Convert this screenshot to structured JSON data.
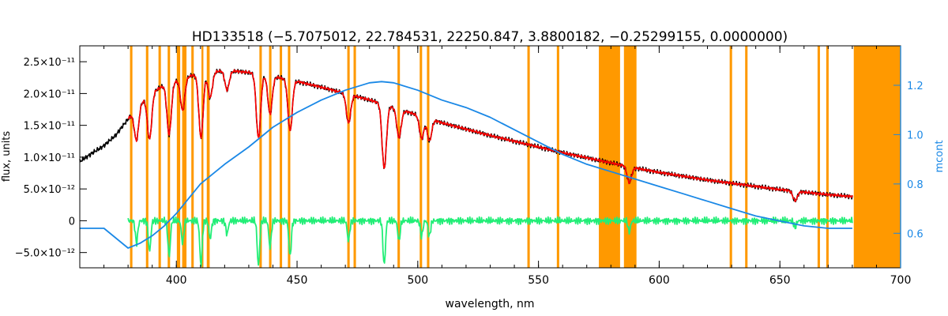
{
  "chart_data": {
    "type": "line",
    "title": "HD133518   (−5.7075012, 22.784531, 22250.847, 3.8800182, −0.25299155, 0.0000000)",
    "xlabel": "wavelength, nm",
    "ylabel": "flux, units",
    "ylabel_right": "mcont",
    "xlim": [
      360,
      700
    ],
    "ylim": [
      -7.4e-12,
      2.75e-11
    ],
    "ylim_right": [
      0.46,
      1.36
    ],
    "x_ticks": [
      400,
      450,
      500,
      550,
      600,
      650,
      700
    ],
    "x_tick_labels": [
      "400",
      "450",
      "500",
      "550",
      "600",
      "650",
      "700"
    ],
    "y_ticks": [
      -5e-12,
      0,
      5e-12,
      1e-11,
      1.5e-11,
      2e-11,
      2.5e-11
    ],
    "y_tick_labels": [
      "−5.0×10⁻¹²",
      "0",
      "5.0×10⁻¹²",
      "1.0×10⁻¹¹",
      "1.5×10⁻¹¹",
      "2.0×10⁻¹¹",
      "2.5×10⁻¹¹"
    ],
    "y_right_ticks": [
      0.6,
      0.8,
      1.0,
      1.2
    ],
    "y_right_tick_labels": [
      "0.6",
      "0.8",
      "1.0",
      "1.2"
    ],
    "masked_regions": [
      [
        380.8,
        381.8
      ],
      [
        387.4,
        388.4
      ],
      [
        392.6,
        393.6
      ],
      [
        396.4,
        397.4
      ],
      [
        400.2,
        401.6
      ],
      [
        402.4,
        404.2
      ],
      [
        406.2,
        407.2
      ],
      [
        410.4,
        411.2
      ],
      [
        412.6,
        413.8
      ],
      [
        434.4,
        435.4
      ],
      [
        438.4,
        439.4
      ],
      [
        442.8,
        443.8
      ],
      [
        446.2,
        447.2
      ],
      [
        470.8,
        471.8
      ],
      [
        473.4,
        474.4
      ],
      [
        491.6,
        492.6
      ],
      [
        500.8,
        501.8
      ],
      [
        503.8,
        504.8
      ],
      [
        545.4,
        546.4
      ],
      [
        557.6,
        558.6
      ],
      [
        575.0,
        583.8
      ],
      [
        585.4,
        590.6
      ],
      [
        629.2,
        630.2
      ],
      [
        635.6,
        636.6
      ],
      [
        665.6,
        666.6
      ],
      [
        669.2,
        670.2
      ],
      [
        680.6,
        700.0
      ]
    ],
    "series": [
      {
        "color": "#000000",
        "x": [
          360,
          365,
          370,
          375,
          380,
          385,
          390,
          395,
          400,
          405,
          410,
          415,
          420,
          425,
          430,
          440,
          450,
          460,
          470,
          480,
          490,
          500,
          510,
          520,
          530,
          540,
          550,
          560,
          570,
          580,
          590,
          600,
          610,
          620,
          630,
          640,
          650,
          660,
          670,
          680
        ],
        "y": [
          9.3e-12,
          1.06e-11,
          1.18e-11,
          1.35e-11,
          1.6e-11,
          1.84e-11,
          2.02e-11,
          2.13e-11,
          2.2e-11,
          2.27e-11,
          2.31e-11,
          2.34e-11,
          2.36e-11,
          2.35e-11,
          2.33e-11,
          2.27e-11,
          2.19e-11,
          2.1e-11,
          2e-11,
          1.9e-11,
          1.78e-11,
          1.66e-11,
          1.54e-11,
          1.44e-11,
          1.34e-11,
          1.25e-11,
          1.16e-11,
          1.07e-11,
          9.9e-12,
          9.1e-12,
          8.3e-12,
          7.6e-12,
          7e-12,
          6.4e-12,
          5.9e-12,
          5.4e-12,
          4.9e-12,
          4.5e-12,
          4.1e-12,
          3.8e-12
        ]
      },
      {
        "color": "#ff0000",
        "x": [
          380,
          385,
          390,
          395,
          400,
          405,
          410,
          415,
          420,
          425,
          430,
          440,
          450,
          460,
          470,
          480,
          490,
          500,
          510,
          520,
          530,
          540,
          550,
          560,
          570,
          580,
          590,
          600,
          610,
          620,
          630,
          640,
          650,
          660,
          670,
          680
        ],
        "y": [
          1.6e-11,
          1.84e-11,
          2.02e-11,
          2.13e-11,
          2.2e-11,
          2.27e-11,
          2.31e-11,
          2.34e-11,
          2.36e-11,
          2.35e-11,
          2.33e-11,
          2.27e-11,
          2.19e-11,
          2.1e-11,
          2e-11,
          1.9e-11,
          1.78e-11,
          1.66e-11,
          1.54e-11,
          1.44e-11,
          1.34e-11,
          1.25e-11,
          1.16e-11,
          1.07e-11,
          9.9e-12,
          9.1e-12,
          8.3e-12,
          7.6e-12,
          7e-12,
          6.4e-12,
          5.9e-12,
          5.4e-12,
          4.9e-12,
          4.5e-12,
          4.1e-12,
          3.8e-12
        ]
      },
      {
        "color": "#22ee77",
        "x": [
          380,
          400,
          420,
          440,
          460,
          480,
          500,
          520,
          540,
          560,
          580,
          600,
          620,
          640,
          660,
          680
        ],
        "y": [
          0,
          0,
          0,
          0,
          0,
          0,
          0,
          0,
          0,
          0,
          0,
          0,
          0,
          0,
          0,
          0
        ]
      },
      {
        "color": "#1a88e6",
        "axis": "right",
        "x": [
          360,
          370,
          380,
          385,
          390,
          395,
          400,
          405,
          410,
          420,
          430,
          440,
          450,
          460,
          470,
          480,
          485,
          490,
          500,
          510,
          520,
          530,
          540,
          550,
          560,
          570,
          580,
          590,
          600,
          610,
          620,
          630,
          640,
          650,
          660,
          670,
          680
        ],
        "y": [
          0.62,
          0.62,
          0.54,
          0.56,
          0.59,
          0.63,
          0.68,
          0.74,
          0.8,
          0.88,
          0.95,
          1.03,
          1.09,
          1.14,
          1.18,
          1.21,
          1.215,
          1.21,
          1.18,
          1.14,
          1.11,
          1.07,
          1.02,
          0.97,
          0.92,
          0.88,
          0.85,
          0.82,
          0.79,
          0.76,
          0.73,
          0.7,
          0.67,
          0.65,
          0.63,
          0.62,
          0.62
        ]
      }
    ],
    "absorption_lines": [
      {
        "x": 383.5,
        "depth": 5e-12
      },
      {
        "x": 388.9,
        "depth": 7e-12
      },
      {
        "x": 397.0,
        "depth": 8e-12
      },
      {
        "x": 402.6,
        "depth": 5e-12
      },
      {
        "x": 410.2,
        "depth": 1e-11
      },
      {
        "x": 414.0,
        "depth": 4e-12
      },
      {
        "x": 421.0,
        "depth": 3e-12
      },
      {
        "x": 434.0,
        "depth": 1e-11
      },
      {
        "x": 438.8,
        "depth": 6e-12
      },
      {
        "x": 447.1,
        "depth": 8e-12
      },
      {
        "x": 471.3,
        "depth": 4.5e-12
      },
      {
        "x": 486.1,
        "depth": 1e-11
      },
      {
        "x": 492.2,
        "depth": 4.5e-12
      },
      {
        "x": 501.6,
        "depth": 3.5e-12
      },
      {
        "x": 504.8,
        "depth": 3.5e-12
      },
      {
        "x": 587.6,
        "depth": 2.5e-12
      },
      {
        "x": 656.3,
        "depth": 1.5e-12
      }
    ]
  }
}
